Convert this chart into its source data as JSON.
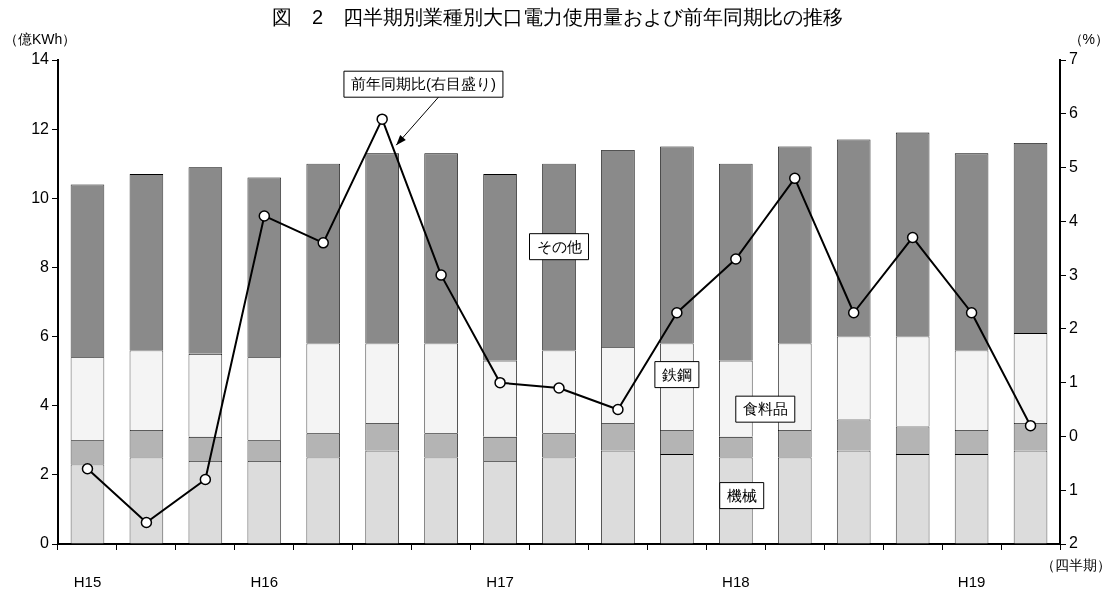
{
  "chart_data": {
    "type": "bar",
    "title": "図　2　四半期別業種別大口電力使用量および前年同期比の推移",
    "ylabel": "（億KWh）",
    "y2label": "（%）",
    "xlabel": "（四半期）",
    "categories": [
      "H15",
      null,
      null,
      "H16",
      null,
      null,
      null,
      "H17",
      null,
      null,
      null,
      "H18",
      null,
      null,
      null,
      "H19",
      null
    ],
    "stacked": true,
    "grid": false,
    "marker": "circle",
    "line_style": "solid",
    "ylim": [
      0,
      14
    ],
    "yticks": [
      0,
      2,
      4,
      6,
      8,
      10,
      12,
      14
    ],
    "y2lim": [
      -2,
      7
    ],
    "y2ticks": [
      {
        "value": -2,
        "label": "2"
      },
      {
        "value": -1,
        "label": "1"
      },
      0,
      1,
      2,
      3,
      4,
      5,
      6,
      7
    ],
    "series": [
      {
        "name": "機械",
        "color": "#dcdcdc",
        "values": [
          2.3,
          2.5,
          2.4,
          2.4,
          2.5,
          2.7,
          2.5,
          2.4,
          2.5,
          2.7,
          2.6,
          2.5,
          2.5,
          2.7,
          2.6,
          2.6,
          2.7
        ]
      },
      {
        "name": "食料品",
        "color": "#b4b4b4",
        "values": [
          0.7,
          0.8,
          0.7,
          0.6,
          0.7,
          0.8,
          0.7,
          0.7,
          0.7,
          0.8,
          0.7,
          0.6,
          0.8,
          0.9,
          0.8,
          0.7,
          0.8
        ]
      },
      {
        "name": "鉄鋼",
        "color": "#f4f4f4",
        "values": [
          2.4,
          2.3,
          2.4,
          2.4,
          2.6,
          2.3,
          2.6,
          2.2,
          2.4,
          2.2,
          2.5,
          2.2,
          2.5,
          2.4,
          2.6,
          2.3,
          2.6
        ]
      },
      {
        "name": "その他",
        "color": "#8a8a8a",
        "values": [
          5.0,
          5.1,
          5.4,
          5.2,
          5.2,
          5.5,
          5.5,
          5.4,
          5.4,
          5.7,
          5.7,
          5.7,
          5.7,
          5.7,
          5.9,
          5.7,
          5.5
        ]
      },
      {
        "name": "前年同期比(右目盛り)",
        "type": "line",
        "axis": "y2",
        "color": "#000000",
        "values": [
          -0.6,
          -1.6,
          -0.8,
          4.1,
          3.6,
          5.9,
          3.0,
          1.0,
          0.9,
          0.5,
          2.3,
          3.3,
          4.8,
          2.3,
          3.7,
          2.3,
          0.2
        ]
      }
    ]
  }
}
